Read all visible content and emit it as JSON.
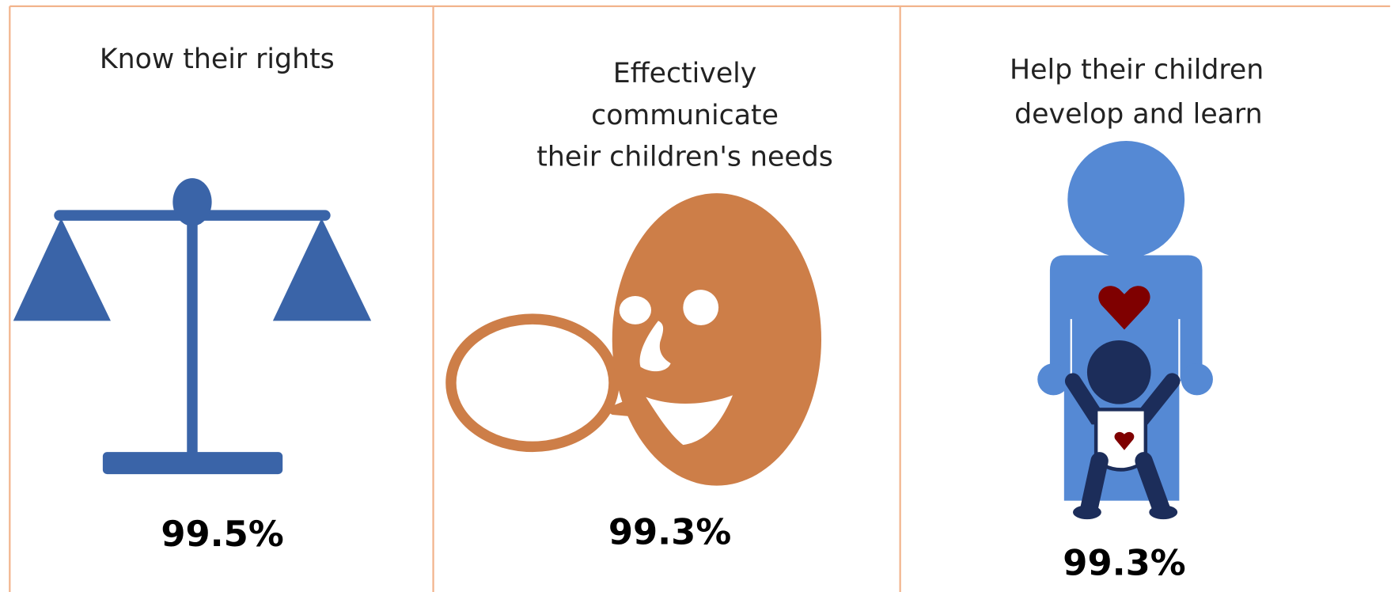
{
  "panels": [
    {
      "label": [
        "Know their rights"
      ],
      "value": "99.5%"
    },
    {
      "label": [
        "Effectively",
        "communicate",
        "their children's needs"
      ],
      "value": "99.3%"
    },
    {
      "label": [
        "Help their children",
        "develop and learn"
      ],
      "value": "99.3%"
    }
  ]
}
